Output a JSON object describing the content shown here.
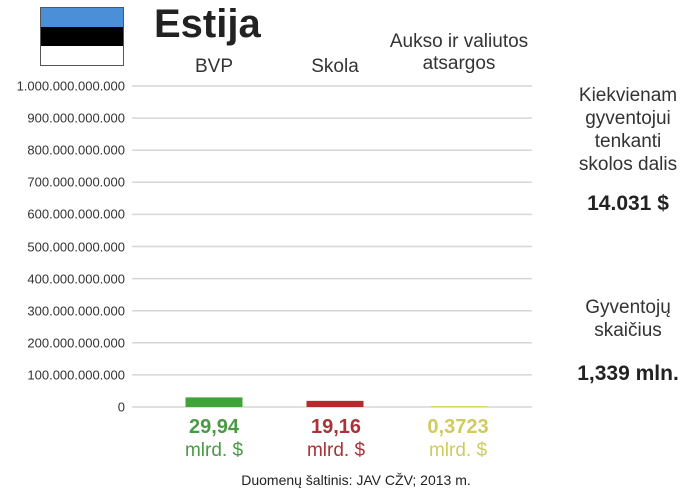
{
  "title": "Estija",
  "flag_colors": [
    "#4a8fd8",
    "#000000",
    "#ffffff"
  ],
  "chart_data": {
    "type": "bar",
    "categories": [
      "BVP",
      "Skola",
      "Aukso ir valiutos atsargos"
    ],
    "category_lines": [
      [
        "BVP"
      ],
      [
        "Skola"
      ],
      [
        "Aukso ir valiutos",
        "atsargos"
      ]
    ],
    "values": [
      29940000000,
      19160000000,
      372300000
    ],
    "value_labels": [
      "29,94",
      "19,16",
      "0,3723"
    ],
    "unit_label": "mlrd. $",
    "colors": [
      "#3fa33a",
      "#b8282f",
      "#d8d46a"
    ],
    "label_colors": [
      "#4a9a45",
      "#a8343a",
      "#cfcb5e"
    ],
    "ylim": [
      0,
      1000000000000
    ],
    "yticks": [
      "0",
      "100.000.000.000",
      "200.000.000.000",
      "300.000.000.000",
      "400.000.000.000",
      "500.000.000.000",
      "600.000.000.000",
      "700.000.000.000",
      "800.000.000.000",
      "900.000.000.000",
      "1.000.000.000.000"
    ],
    "grid": true
  },
  "side": {
    "debt_per_capita_lines": [
      "Kiekvienam",
      "gyventojui",
      "tenkanti",
      "skolos dalis"
    ],
    "debt_per_capita_value": "14.031 $",
    "population_lines": [
      "Gyventojų",
      "skaičius"
    ],
    "population_value": "1,339 mln."
  },
  "source": "Duomenų šaltinis: JAV CŽV; 2013 m."
}
